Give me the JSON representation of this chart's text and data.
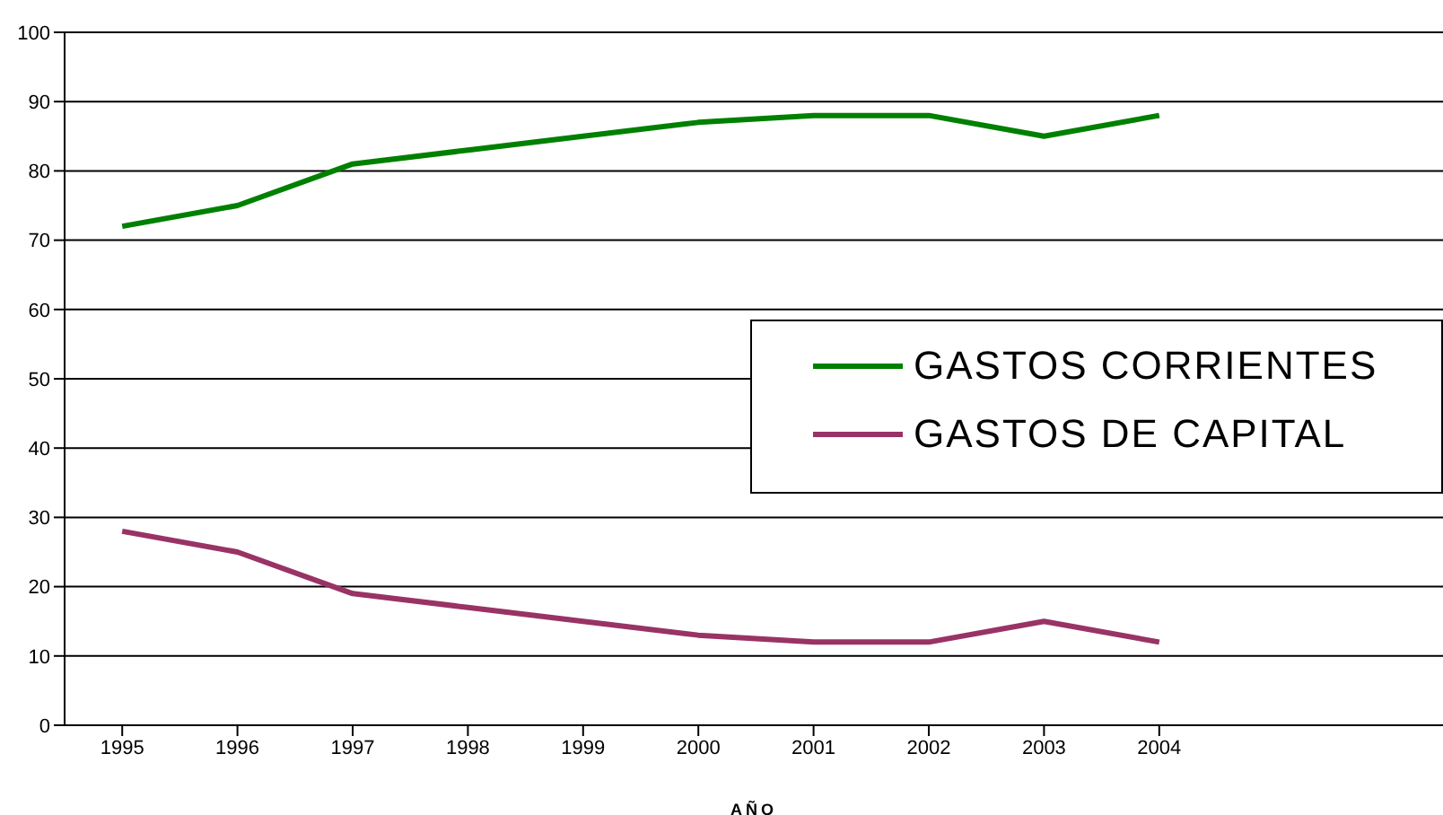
{
  "chart_data": {
    "type": "line",
    "xlabel": "AÑO",
    "categories": [
      "1995",
      "1996",
      "1997",
      "1998",
      "1999",
      "2000",
      "2001",
      "2002",
      "2003",
      "2004"
    ],
    "series": [
      {
        "name": "GASTOS CORRIENTES",
        "color": "#008000",
        "values": [
          72,
          75,
          81,
          83,
          85,
          87,
          88,
          88,
          85,
          88
        ]
      },
      {
        "name": "GASTOS DE CAPITAL",
        "color": "#993366",
        "values": [
          28,
          25,
          19,
          17,
          15,
          13,
          12,
          12,
          15,
          12
        ]
      }
    ],
    "ylim": [
      0,
      100
    ],
    "yticks": [
      0,
      10,
      20,
      30,
      40,
      50,
      60,
      70,
      80,
      90,
      100
    ],
    "grid": "y",
    "legend": "right",
    "marker": "none",
    "line_style": "solid"
  }
}
